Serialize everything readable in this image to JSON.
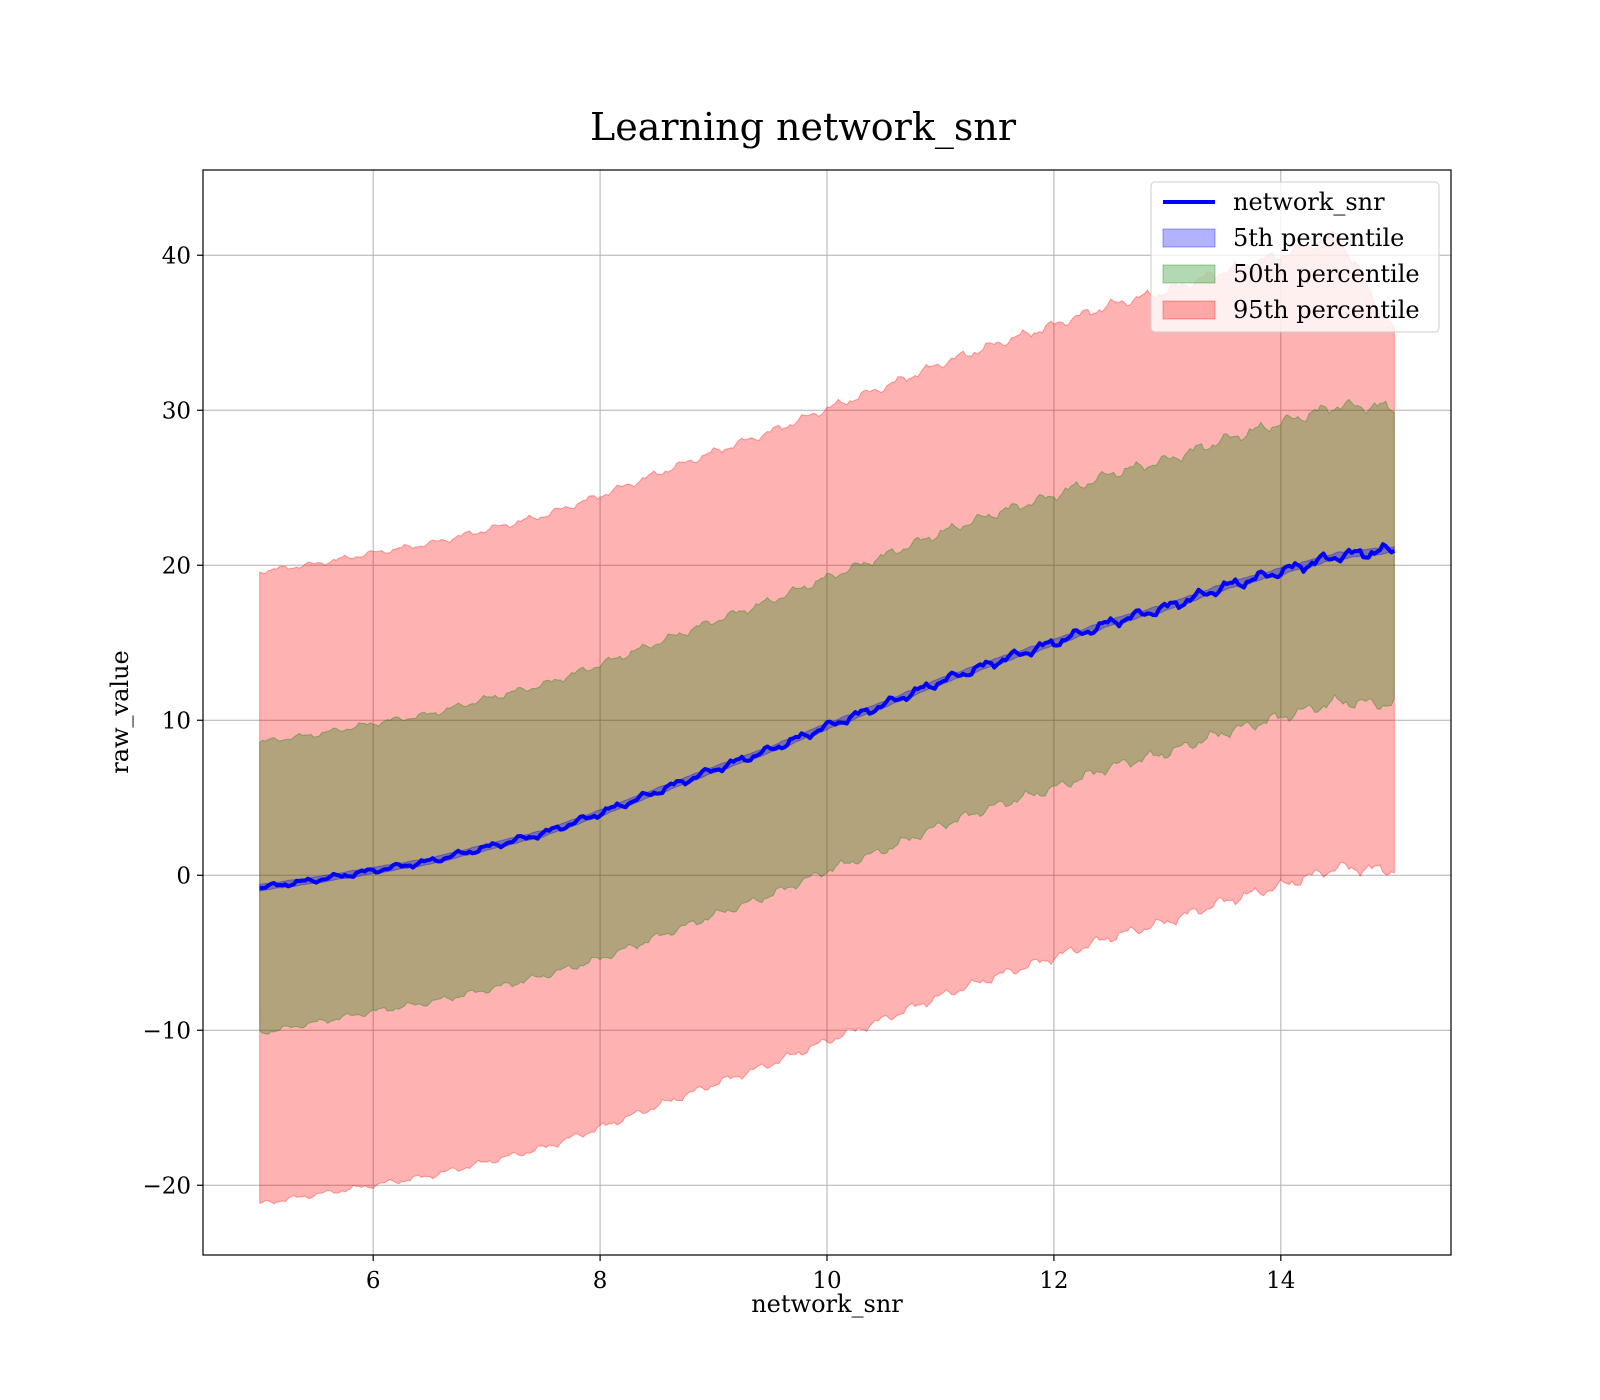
{
  "chart_data": {
    "type": "line",
    "title": "Learning network_snr",
    "xlabel": "network_snr",
    "ylabel": "raw_value",
    "xlim": [
      4.5,
      15.5
    ],
    "ylim": [
      -24.5,
      45.5
    ],
    "xticks": [
      6,
      8,
      10,
      12,
      14
    ],
    "yticks": [
      -20,
      -10,
      0,
      10,
      20,
      30,
      40
    ],
    "xtick_labels": [
      "6",
      "8",
      "10",
      "12",
      "14"
    ],
    "ytick_labels": [
      "−20",
      "−10",
      "0",
      "10",
      "20",
      "30",
      "40"
    ],
    "grid": true,
    "legend_position": "top-right",
    "x": [
      5,
      5.5,
      6,
      6.5,
      7,
      7.5,
      8,
      8.5,
      9,
      9.5,
      10,
      10.5,
      11,
      11.5,
      12,
      12.5,
      13,
      13.5,
      14,
      14.5,
      15
    ],
    "series": [
      {
        "name": "network_snr",
        "kind": "line",
        "color": "#0000ff",
        "values": [
          -0.8,
          -0.3,
          0.3,
          0.9,
          1.8,
          2.7,
          4.0,
          5.4,
          6.8,
          8.1,
          9.6,
          11.0,
          12.5,
          13.8,
          15.0,
          16.3,
          17.3,
          18.6,
          19.6,
          20.6,
          21.0
        ]
      },
      {
        "name": "5th percentile",
        "kind": "band",
        "color": "#0000ff",
        "lower": [
          -1.0,
          -0.5,
          0.1,
          0.7,
          1.6,
          2.5,
          3.8,
          5.2,
          6.6,
          7.9,
          9.4,
          10.8,
          12.3,
          13.6,
          14.8,
          16.1,
          17.1,
          18.4,
          19.4,
          20.4,
          20.8
        ],
        "upper": [
          -0.6,
          -0.1,
          0.5,
          1.1,
          2.0,
          2.9,
          4.2,
          5.6,
          7.0,
          8.3,
          9.8,
          11.2,
          12.7,
          14.0,
          15.2,
          16.5,
          17.5,
          18.8,
          19.8,
          20.8,
          21.2
        ]
      },
      {
        "name": "50th percentile",
        "kind": "band",
        "color": "#008000",
        "lower": [
          -10.2,
          -9.5,
          -8.8,
          -8.2,
          -7.4,
          -6.5,
          -5.4,
          -4.0,
          -2.6,
          -1.3,
          0.3,
          1.6,
          3.2,
          4.5,
          5.6,
          7.0,
          7.9,
          9.2,
          10.2,
          11.2,
          11.0
        ],
        "upper": [
          8.6,
          9.1,
          9.8,
          10.4,
          11.4,
          12.3,
          13.6,
          15.0,
          16.4,
          17.7,
          19.2,
          20.6,
          22.1,
          23.4,
          24.5,
          25.9,
          26.8,
          28.1,
          29.2,
          30.3,
          30.2
        ]
      },
      {
        "name": "95th percentile",
        "kind": "band",
        "color": "#ff0000",
        "lower": [
          -21.2,
          -20.6,
          -20.0,
          -19.4,
          -18.5,
          -17.6,
          -16.3,
          -14.9,
          -13.5,
          -12.2,
          -10.7,
          -9.3,
          -7.8,
          -6.5,
          -5.3,
          -4.0,
          -3.0,
          -1.7,
          -0.7,
          0.5,
          0.3
        ],
        "upper": [
          19.6,
          20.1,
          20.8,
          21.4,
          22.3,
          23.2,
          24.5,
          25.9,
          27.3,
          28.6,
          30.1,
          31.5,
          33.0,
          34.3,
          35.5,
          36.8,
          37.7,
          39.0,
          40.0,
          41.3,
          35.0
        ]
      }
    ]
  }
}
